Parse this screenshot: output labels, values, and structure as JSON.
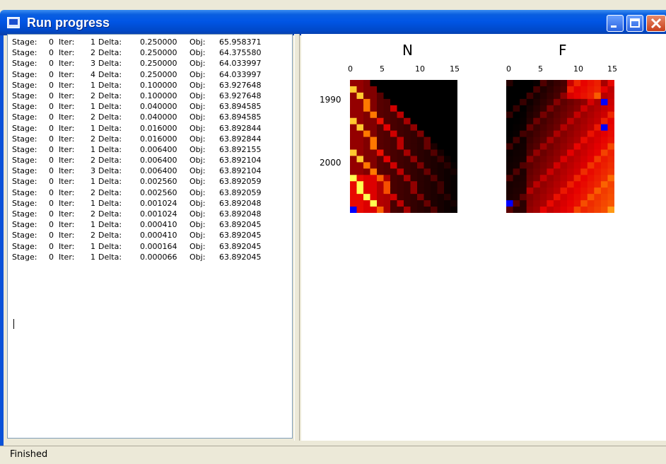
{
  "window": {
    "title": "Run progress"
  },
  "log": {
    "labels": {
      "stage": "Stage:",
      "iter": "Iter:",
      "delta": "Delta:",
      "obj": "Obj:"
    },
    "lines": [
      {
        "stage": "0",
        "iter": "1",
        "delta": "0.250000",
        "obj": "65.958371"
      },
      {
        "stage": "0",
        "iter": "2",
        "delta": "0.250000",
        "obj": "64.375580"
      },
      {
        "stage": "0",
        "iter": "3",
        "delta": "0.250000",
        "obj": "64.033997"
      },
      {
        "stage": "0",
        "iter": "4",
        "delta": "0.250000",
        "obj": "64.033997"
      },
      {
        "stage": "0",
        "iter": "1",
        "delta": "0.100000",
        "obj": "63.927648"
      },
      {
        "stage": "0",
        "iter": "2",
        "delta": "0.100000",
        "obj": "63.927648"
      },
      {
        "stage": "0",
        "iter": "1",
        "delta": "0.040000",
        "obj": "63.894585"
      },
      {
        "stage": "0",
        "iter": "2",
        "delta": "0.040000",
        "obj": "63.894585"
      },
      {
        "stage": "0",
        "iter": "1",
        "delta": "0.016000",
        "obj": "63.892844"
      },
      {
        "stage": "0",
        "iter": "2",
        "delta": "0.016000",
        "obj": "63.892844"
      },
      {
        "stage": "0",
        "iter": "1",
        "delta": "0.006400",
        "obj": "63.892155"
      },
      {
        "stage": "0",
        "iter": "2",
        "delta": "0.006400",
        "obj": "63.892104"
      },
      {
        "stage": "0",
        "iter": "3",
        "delta": "0.006400",
        "obj": "63.892104"
      },
      {
        "stage": "0",
        "iter": "1",
        "delta": "0.002560",
        "obj": "63.892059"
      },
      {
        "stage": "0",
        "iter": "2",
        "delta": "0.002560",
        "obj": "63.892059"
      },
      {
        "stage": "0",
        "iter": "1",
        "delta": "0.001024",
        "obj": "63.892048"
      },
      {
        "stage": "0",
        "iter": "2",
        "delta": "0.001024",
        "obj": "63.892048"
      },
      {
        "stage": "0",
        "iter": "1",
        "delta": "0.000410",
        "obj": "63.892045"
      },
      {
        "stage": "0",
        "iter": "2",
        "delta": "0.000410",
        "obj": "63.892045"
      },
      {
        "stage": "0",
        "iter": "1",
        "delta": "0.000164",
        "obj": "63.892045"
      },
      {
        "stage": "0",
        "iter": "1",
        "delta": "0.000066",
        "obj": "63.892045"
      }
    ]
  },
  "heatmaps": {
    "n": {
      "title": "N",
      "x_ticks": [
        "0",
        "5",
        "10",
        "15"
      ],
      "y_ticks": [
        "1990",
        "2000"
      ]
    },
    "f": {
      "title": "F",
      "x_ticks": [
        "0",
        "5",
        "10",
        "15"
      ]
    }
  },
  "status": {
    "text": "Finished"
  },
  "colors": {
    "titlebar": "#0055e5",
    "heat_low": "#000000",
    "heat_mid": "#d01000",
    "heat_high": "#ffff40",
    "flag": "#0000ff"
  }
}
